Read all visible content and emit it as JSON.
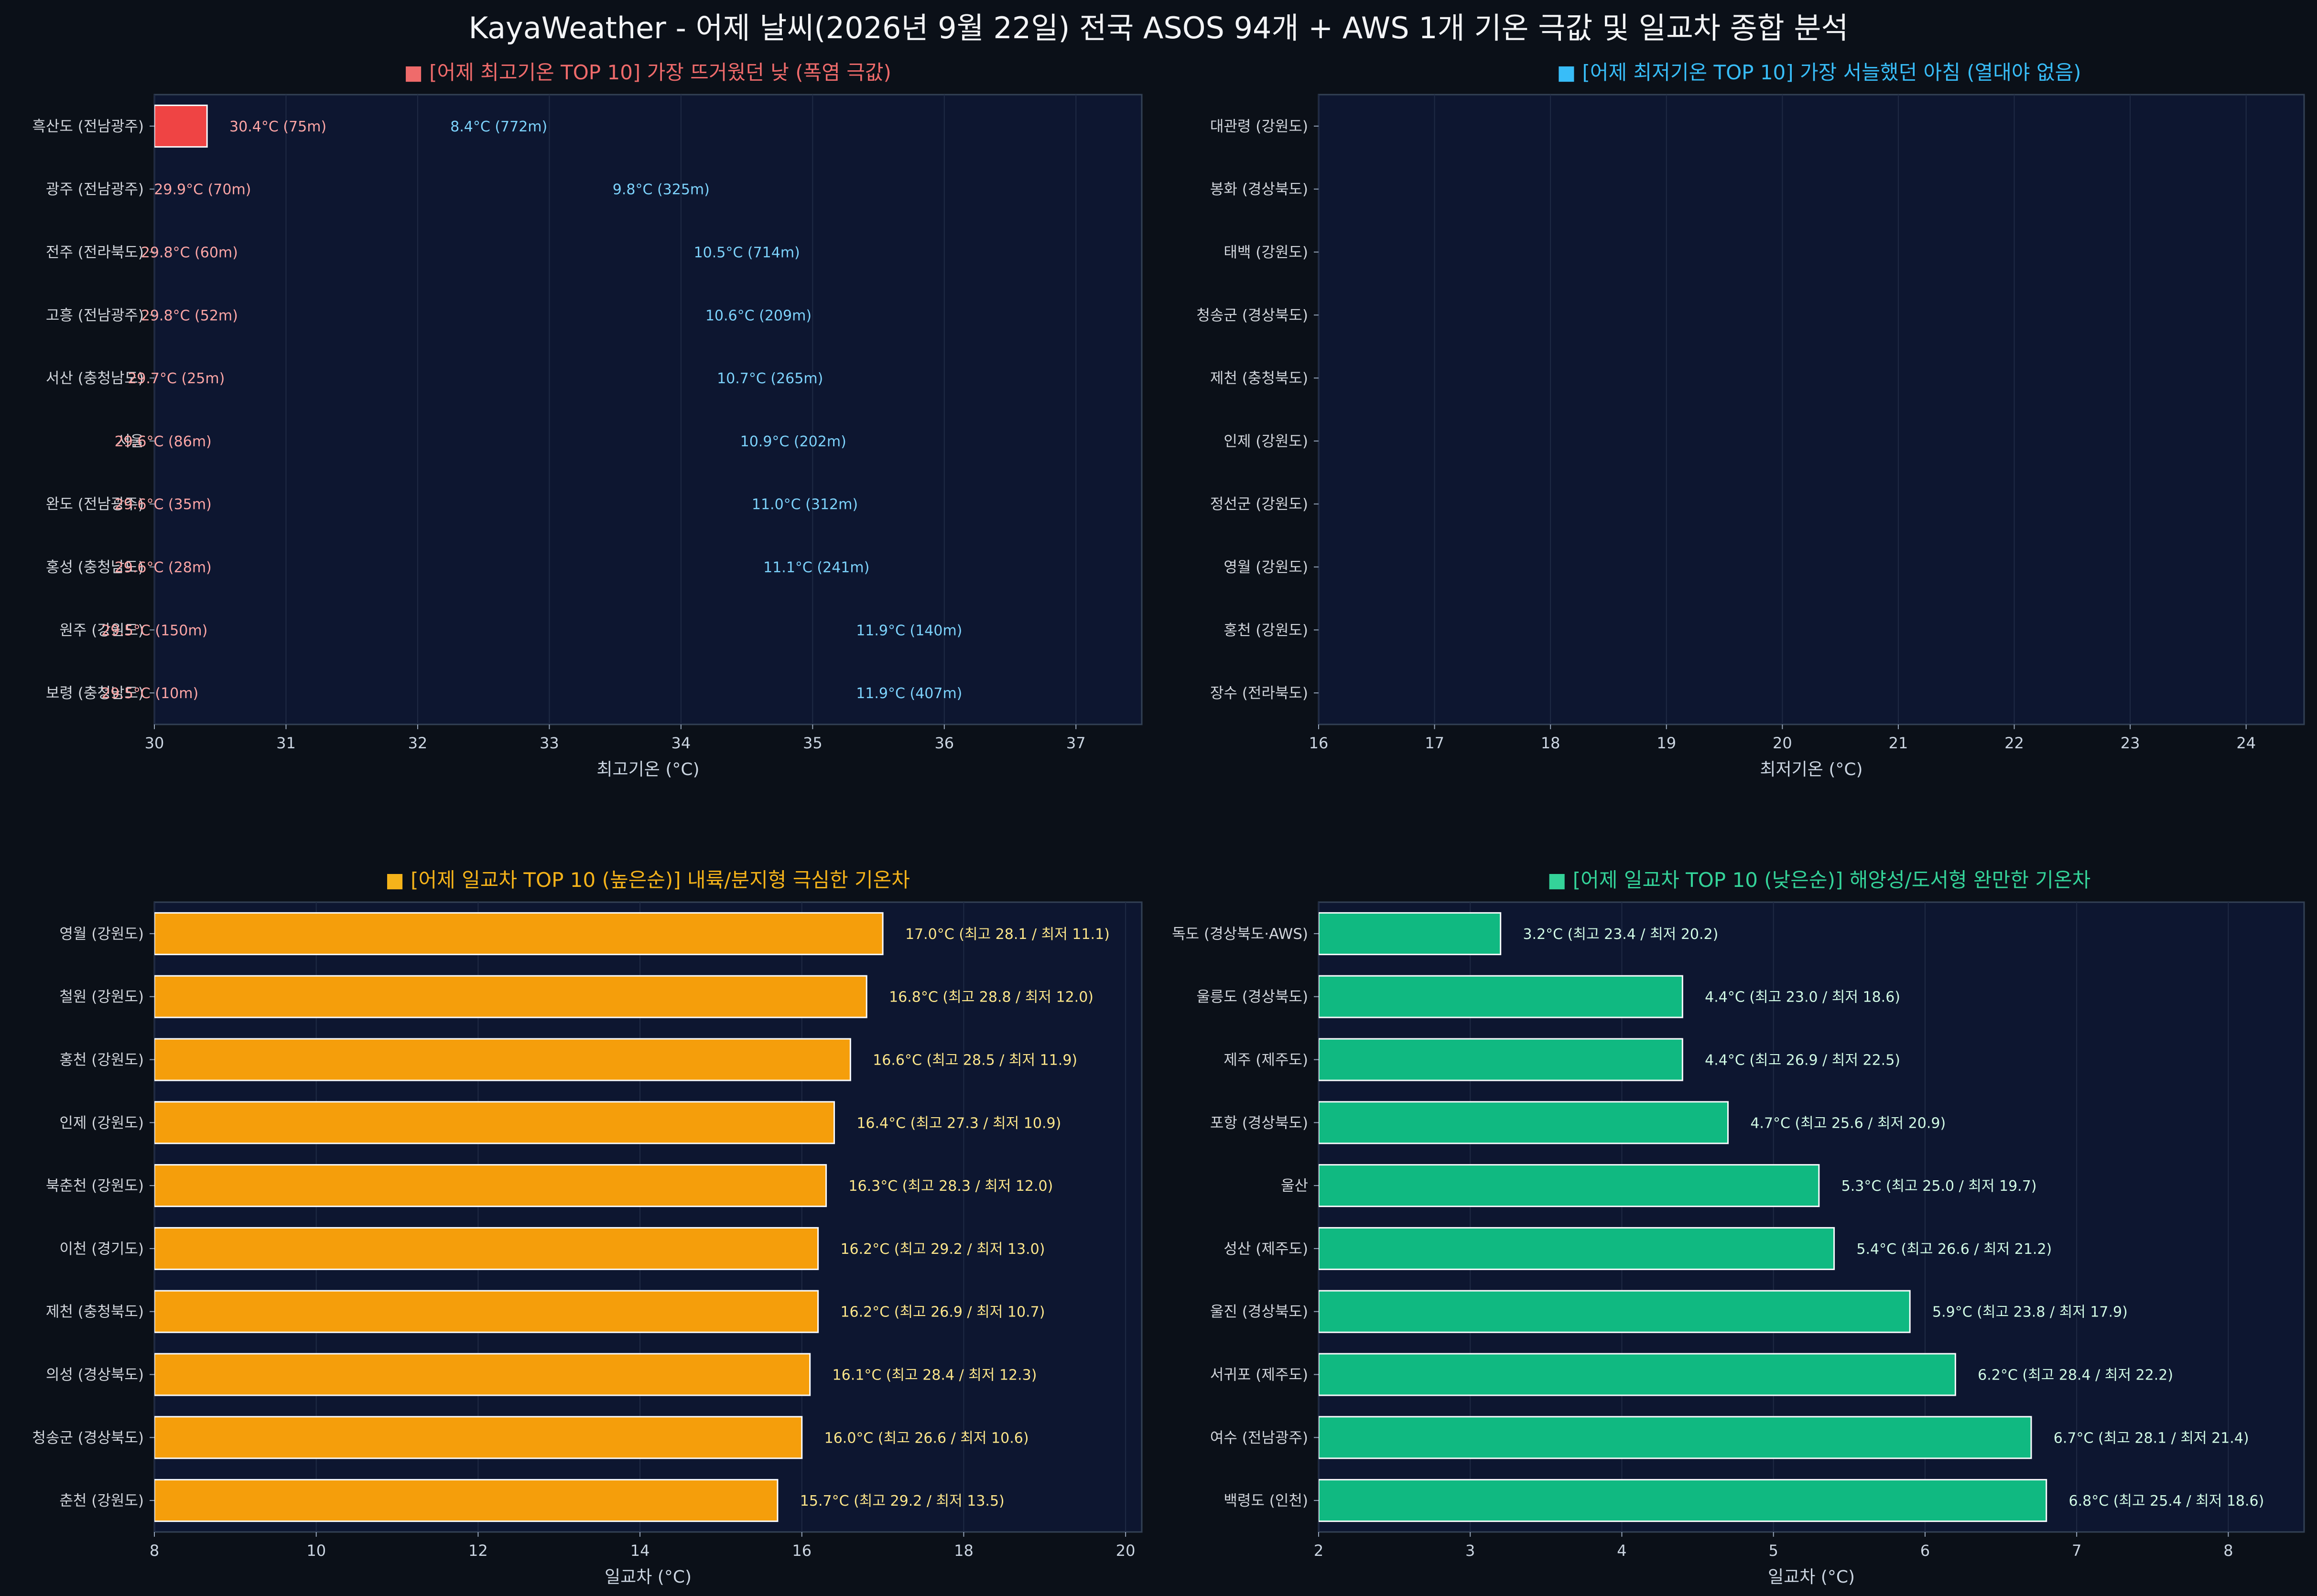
{
  "title": "KayaWeather - 어제 날씨(2026년 9월 22일) 전국 ASOS 94개 + AWS 1개 기온 극값 및 일교차 종합 분석",
  "colors": {
    "bg": "#0b1018",
    "panel": "#0d1630",
    "hot": "#ef4444",
    "cold": "#38bdf8",
    "range_high": "#f59e0b",
    "range_low": "#10b981",
    "hot_label": "#fca5a5",
    "cold_label": "#7dd3fc",
    "high_label": "#fde68a",
    "low_label": "#d1fae5"
  },
  "chart_data": [
    {
      "id": "maxtemp",
      "type": "bar",
      "title": "■ [어제 최고기온 TOP 10] 가장 뜨거웠던 낮 (폭염 극값)",
      "title_color": "#ef6b6b",
      "xlabel": "최고기온 (°C)",
      "xlim": [
        30,
        37.5
      ],
      "xticks": [
        30,
        31,
        32,
        33,
        34,
        35,
        36,
        37
      ],
      "grid": true,
      "categories": [
        "흑산도 (전남광주)",
        "광주 (전남광주)",
        "전주 (전라북도)",
        "고흥 (전남광주)",
        "서산 (충청남도)",
        "서울",
        "완도 (전남광주)",
        "홍성 (충청남도)",
        "원주 (강원도)",
        "보령 (충청남도)"
      ],
      "values": [
        30.4,
        29.9,
        29.8,
        29.8,
        29.7,
        29.6,
        29.6,
        29.6,
        29.5,
        29.5
      ],
      "labels": [
        "30.4°C (75m)",
        "29.9°C (70m)",
        "29.8°C (60m)",
        "29.8°C (52m)",
        "29.7°C (25m)",
        "29.6°C (86m)",
        "29.6°C (35m)",
        "29.6°C (28m)",
        "29.5°C (150m)",
        "29.5°C (10m)"
      ],
      "bar_color": "#ef4444",
      "label_color": "#fca5a5"
    },
    {
      "id": "mintemp",
      "type": "bar",
      "title": "■ [어제 최저기온 TOP 10] 가장 서늘했던 아침 (열대야 없음)",
      "title_color": "#38bdf8",
      "xlabel": "최저기온 (°C)",
      "xlim": [
        16,
        24.5
      ],
      "xticks": [
        16,
        17,
        18,
        19,
        20,
        21,
        22,
        23,
        24
      ],
      "grid": true,
      "categories": [
        "대관령 (강원도)",
        "봉화 (경상북도)",
        "태백 (강원도)",
        "청송군 (경상북도)",
        "제천 (충청북도)",
        "인제 (강원도)",
        "정선군 (강원도)",
        "영월 (강원도)",
        "홍천 (강원도)",
        "장수 (전라북도)"
      ],
      "values": [
        8.4,
        9.8,
        10.5,
        10.6,
        10.7,
        10.9,
        11.0,
        11.1,
        11.9,
        11.9
      ],
      "labels": [
        "8.4°C (772m)",
        "9.8°C (325m)",
        "10.5°C (714m)",
        "10.6°C (209m)",
        "10.7°C (265m)",
        "10.9°C (202m)",
        "11.0°C (312m)",
        "11.1°C (241m)",
        "11.9°C (140m)",
        "11.9°C (407m)"
      ],
      "bar_color": "#38bdf8",
      "label_color": "#7dd3fc"
    },
    {
      "id": "range_high",
      "type": "bar",
      "title": "■ [어제 일교차 TOP 10 (높은순)] 내륙/분지형 극심한 기온차",
      "title_color": "#f5b31a",
      "xlabel": "일교차 (°C)",
      "xlim": [
        8,
        20.2
      ],
      "xticks": [
        8,
        10,
        12,
        14,
        16,
        18,
        20
      ],
      "grid": true,
      "categories": [
        "영월 (강원도)",
        "철원 (강원도)",
        "홍천 (강원도)",
        "인제 (강원도)",
        "북춘천 (강원도)",
        "이천 (경기도)",
        "제천 (충청북도)",
        "의성 (경상북도)",
        "청송군 (경상북도)",
        "춘천 (강원도)"
      ],
      "values": [
        17.0,
        16.8,
        16.6,
        16.4,
        16.3,
        16.2,
        16.2,
        16.1,
        16.0,
        15.7
      ],
      "labels": [
        "17.0°C (최고 28.1 / 최저 11.1)",
        "16.8°C (최고 28.8 / 최저 12.0)",
        "16.6°C (최고 28.5 / 최저 11.9)",
        "16.4°C (최고 27.3 / 최저 10.9)",
        "16.3°C (최고 28.3 / 최저 12.0)",
        "16.2°C (최고 29.2 / 최저 13.0)",
        "16.2°C (최고 26.9 / 최저 10.7)",
        "16.1°C (최고 28.4 / 최저 12.3)",
        "16.0°C (최고 26.6 / 최저 10.6)",
        "15.7°C (최고 29.2 / 최저 13.5)"
      ],
      "bar_color": "#f59e0b",
      "label_color": "#fde68a"
    },
    {
      "id": "range_low",
      "type": "bar",
      "title": "■ [어제 일교차 TOP 10 (낮은순)] 해양성/도서형 완만한 기온차",
      "title_color": "#34d399",
      "xlabel": "일교차 (°C)",
      "xlim": [
        2,
        8.5
      ],
      "xticks": [
        2,
        3,
        4,
        5,
        6,
        7,
        8
      ],
      "grid": true,
      "categories": [
        "독도 (경상북도·AWS)",
        "울릉도 (경상북도)",
        "제주 (제주도)",
        "포항 (경상북도)",
        "울산",
        "성산 (제주도)",
        "울진 (경상북도)",
        "서귀포 (제주도)",
        "여수 (전남광주)",
        "백령도 (인천)"
      ],
      "values": [
        3.2,
        4.4,
        4.4,
        4.7,
        5.3,
        5.4,
        5.9,
        6.2,
        6.7,
        6.8
      ],
      "labels": [
        "3.2°C (최고 23.4 / 최저 20.2)",
        "4.4°C (최고 23.0 / 최저 18.6)",
        "4.4°C (최고 26.9 / 최저 22.5)",
        "4.7°C (최고 25.6 / 최저 20.9)",
        "5.3°C (최고 25.0 / 최저 19.7)",
        "5.4°C (최고 26.6 / 최저 21.2)",
        "5.9°C (최고 23.8 / 최저 17.9)",
        "6.2°C (최고 28.4 / 최저 22.2)",
        "6.7°C (최고 28.1 / 최저 21.4)",
        "6.8°C (최고 25.4 / 최저 18.6)"
      ],
      "bar_color": "#10b981",
      "label_color": "#d1fae5"
    }
  ]
}
